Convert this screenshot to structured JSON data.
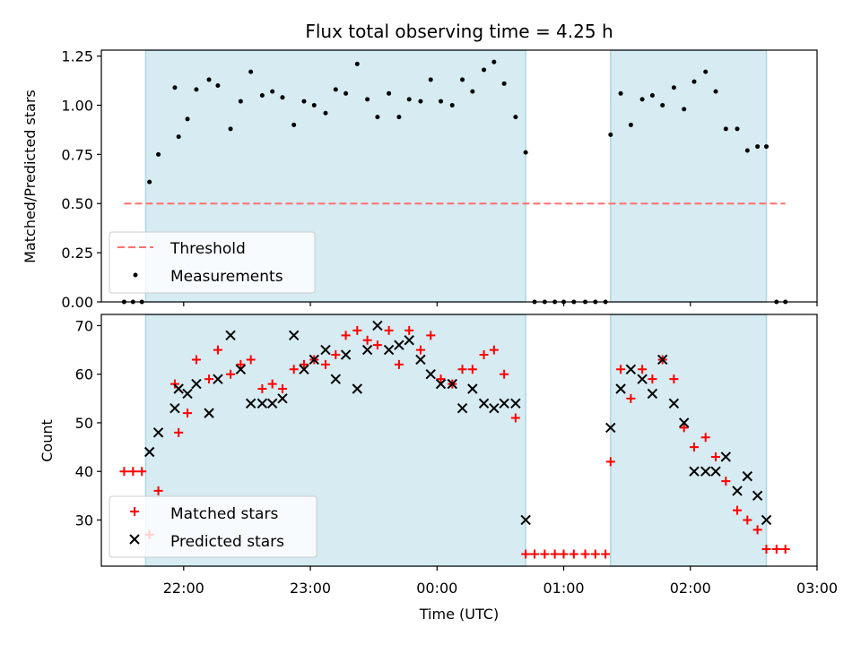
{
  "chart_data": {
    "title": "Flux total observing time = 4.25 h",
    "colors": {
      "shade": "#add8e6",
      "threshold": "#ff7070",
      "measurement": "#000000",
      "matched": "#ff0000",
      "predicted": "#000000"
    },
    "shaded_intervals_hours": [
      [
        21.7,
        24.7
      ],
      [
        25.37,
        26.6
      ]
    ],
    "x_axis": {
      "label": "Time (UTC)",
      "range_hours": [
        21.35,
        27.0
      ],
      "ticks_hours": [
        22,
        23,
        24,
        25,
        26,
        27
      ],
      "tick_labels": [
        "22:00",
        "23:00",
        "00:00",
        "01:00",
        "02:00",
        "03:00"
      ]
    },
    "panels": [
      {
        "type": "scatter",
        "ylabel": "Matched/Predicted stars",
        "ylim": [
          0,
          1.28
        ],
        "yticks": [
          0.0,
          0.25,
          0.5,
          0.75,
          1.0,
          1.25
        ],
        "ytick_labels": [
          "0.00",
          "0.25",
          "0.50",
          "0.75",
          "1.00",
          "1.25"
        ],
        "legend_position": "lower-left",
        "threshold": {
          "name": "Threshold",
          "value": 0.5,
          "x_range_hours": [
            21.53,
            26.75
          ]
        },
        "series": [
          {
            "name": "Measurements",
            "points": [
              [
                21.53,
                0.0
              ],
              [
                21.6,
                0.0
              ],
              [
                21.67,
                0.0
              ],
              [
                21.73,
                0.61
              ],
              [
                21.8,
                0.75
              ],
              [
                21.93,
                1.09
              ],
              [
                21.96,
                0.84
              ],
              [
                22.03,
                0.93
              ],
              [
                22.1,
                1.08
              ],
              [
                22.2,
                1.13
              ],
              [
                22.27,
                1.1
              ],
              [
                22.37,
                0.88
              ],
              [
                22.45,
                1.02
              ],
              [
                22.53,
                1.17
              ],
              [
                22.62,
                1.05
              ],
              [
                22.7,
                1.07
              ],
              [
                22.78,
                1.04
              ],
              [
                22.87,
                0.9
              ],
              [
                22.95,
                1.02
              ],
              [
                23.03,
                1.0
              ],
              [
                23.12,
                0.96
              ],
              [
                23.2,
                1.08
              ],
              [
                23.28,
                1.06
              ],
              [
                23.37,
                1.21
              ],
              [
                23.45,
                1.03
              ],
              [
                23.53,
                0.94
              ],
              [
                23.62,
                1.06
              ],
              [
                23.7,
                0.94
              ],
              [
                23.78,
                1.03
              ],
              [
                23.87,
                1.02
              ],
              [
                23.95,
                1.13
              ],
              [
                24.03,
                1.02
              ],
              [
                24.12,
                1.0
              ],
              [
                24.2,
                1.13
              ],
              [
                24.28,
                1.07
              ],
              [
                24.37,
                1.18
              ],
              [
                24.45,
                1.22
              ],
              [
                24.53,
                1.11
              ],
              [
                24.62,
                0.94
              ],
              [
                24.7,
                0.76
              ],
              [
                24.77,
                0.0
              ],
              [
                24.85,
                0.0
              ],
              [
                24.93,
                0.0
              ],
              [
                25.0,
                0.0
              ],
              [
                25.08,
                0.0
              ],
              [
                25.17,
                0.0
              ],
              [
                25.25,
                0.0
              ],
              [
                25.33,
                0.0
              ],
              [
                25.37,
                0.85
              ],
              [
                25.45,
                1.06
              ],
              [
                25.53,
                0.9
              ],
              [
                25.62,
                1.03
              ],
              [
                25.7,
                1.05
              ],
              [
                25.78,
                1.0
              ],
              [
                25.87,
                1.09
              ],
              [
                25.95,
                0.98
              ],
              [
                26.03,
                1.12
              ],
              [
                26.12,
                1.17
              ],
              [
                26.2,
                1.07
              ],
              [
                26.28,
                0.88
              ],
              [
                26.37,
                0.88
              ],
              [
                26.45,
                0.77
              ],
              [
                26.53,
                0.79
              ],
              [
                26.6,
                0.79
              ],
              [
                26.68,
                0.0
              ],
              [
                26.75,
                0.0
              ]
            ]
          }
        ]
      },
      {
        "type": "scatter",
        "ylabel": "Count",
        "ylim": [
          20.5,
          72.3
        ],
        "yticks": [
          30,
          40,
          50,
          60,
          70
        ],
        "ytick_labels": [
          "30",
          "40",
          "50",
          "60",
          "70"
        ],
        "legend_position": "lower-left",
        "series": [
          {
            "name": "Matched stars",
            "marker": "plus",
            "points": [
              [
                21.53,
                40
              ],
              [
                21.6,
                40
              ],
              [
                21.67,
                40
              ],
              [
                21.73,
                27
              ],
              [
                21.8,
                36
              ],
              [
                21.93,
                58
              ],
              [
                21.96,
                48
              ],
              [
                22.03,
                52
              ],
              [
                22.1,
                63
              ],
              [
                22.2,
                59
              ],
              [
                22.27,
                65
              ],
              [
                22.37,
                60
              ],
              [
                22.45,
                62
              ],
              [
                22.53,
                63
              ],
              [
                22.62,
                57
              ],
              [
                22.7,
                58
              ],
              [
                22.78,
                57
              ],
              [
                22.87,
                61
              ],
              [
                22.95,
                62
              ],
              [
                23.03,
                63
              ],
              [
                23.12,
                62
              ],
              [
                23.2,
                64
              ],
              [
                23.28,
                68
              ],
              [
                23.37,
                69
              ],
              [
                23.45,
                67
              ],
              [
                23.53,
                66
              ],
              [
                23.62,
                69
              ],
              [
                23.7,
                62
              ],
              [
                23.78,
                69
              ],
              [
                23.87,
                65
              ],
              [
                23.95,
                68
              ],
              [
                24.03,
                59
              ],
              [
                24.12,
                58
              ],
              [
                24.2,
                61
              ],
              [
                24.28,
                61
              ],
              [
                24.37,
                64
              ],
              [
                24.45,
                65
              ],
              [
                24.53,
                60
              ],
              [
                24.62,
                51
              ],
              [
                24.7,
                23
              ],
              [
                24.77,
                23
              ],
              [
                24.85,
                23
              ],
              [
                24.93,
                23
              ],
              [
                25.0,
                23
              ],
              [
                25.08,
                23
              ],
              [
                25.17,
                23
              ],
              [
                25.25,
                23
              ],
              [
                25.33,
                23
              ],
              [
                25.37,
                42
              ],
              [
                25.45,
                61
              ],
              [
                25.53,
                55
              ],
              [
                25.62,
                61
              ],
              [
                25.7,
                59
              ],
              [
                25.78,
                63
              ],
              [
                25.87,
                59
              ],
              [
                25.95,
                49
              ],
              [
                26.03,
                45
              ],
              [
                26.12,
                47
              ],
              [
                26.2,
                43
              ],
              [
                26.28,
                38
              ],
              [
                26.37,
                32
              ],
              [
                26.45,
                30
              ],
              [
                26.53,
                28
              ],
              [
                26.6,
                24
              ],
              [
                26.68,
                24
              ],
              [
                26.75,
                24
              ]
            ]
          },
          {
            "name": "Predicted stars",
            "marker": "x",
            "points": [
              [
                21.73,
                44
              ],
              [
                21.8,
                48
              ],
              [
                21.93,
                53
              ],
              [
                21.96,
                57
              ],
              [
                22.03,
                56
              ],
              [
                22.1,
                58
              ],
              [
                22.2,
                52
              ],
              [
                22.27,
                59
              ],
              [
                22.37,
                68
              ],
              [
                22.45,
                61
              ],
              [
                22.53,
                54
              ],
              [
                22.62,
                54
              ],
              [
                22.7,
                54
              ],
              [
                22.78,
                55
              ],
              [
                22.87,
                68
              ],
              [
                22.95,
                61
              ],
              [
                23.03,
                63
              ],
              [
                23.12,
                65
              ],
              [
                23.2,
                59
              ],
              [
                23.28,
                64
              ],
              [
                23.37,
                57
              ],
              [
                23.45,
                65
              ],
              [
                23.53,
                70
              ],
              [
                23.62,
                65
              ],
              [
                23.7,
                66
              ],
              [
                23.78,
                67
              ],
              [
                23.87,
                63
              ],
              [
                23.95,
                60
              ],
              [
                24.03,
                58
              ],
              [
                24.12,
                58
              ],
              [
                24.2,
                53
              ],
              [
                24.28,
                57
              ],
              [
                24.37,
                54
              ],
              [
                24.45,
                53
              ],
              [
                24.53,
                54
              ],
              [
                24.62,
                54
              ],
              [
                24.7,
                30
              ],
              [
                25.37,
                49
              ],
              [
                25.45,
                57
              ],
              [
                25.53,
                61
              ],
              [
                25.62,
                59
              ],
              [
                25.7,
                56
              ],
              [
                25.78,
                63
              ],
              [
                25.87,
                54
              ],
              [
                25.95,
                50
              ],
              [
                26.03,
                40
              ],
              [
                26.12,
                40
              ],
              [
                26.2,
                40
              ],
              [
                26.28,
                43
              ],
              [
                26.37,
                36
              ],
              [
                26.45,
                39
              ],
              [
                26.53,
                35
              ],
              [
                26.6,
                30
              ]
            ]
          }
        ]
      }
    ]
  }
}
